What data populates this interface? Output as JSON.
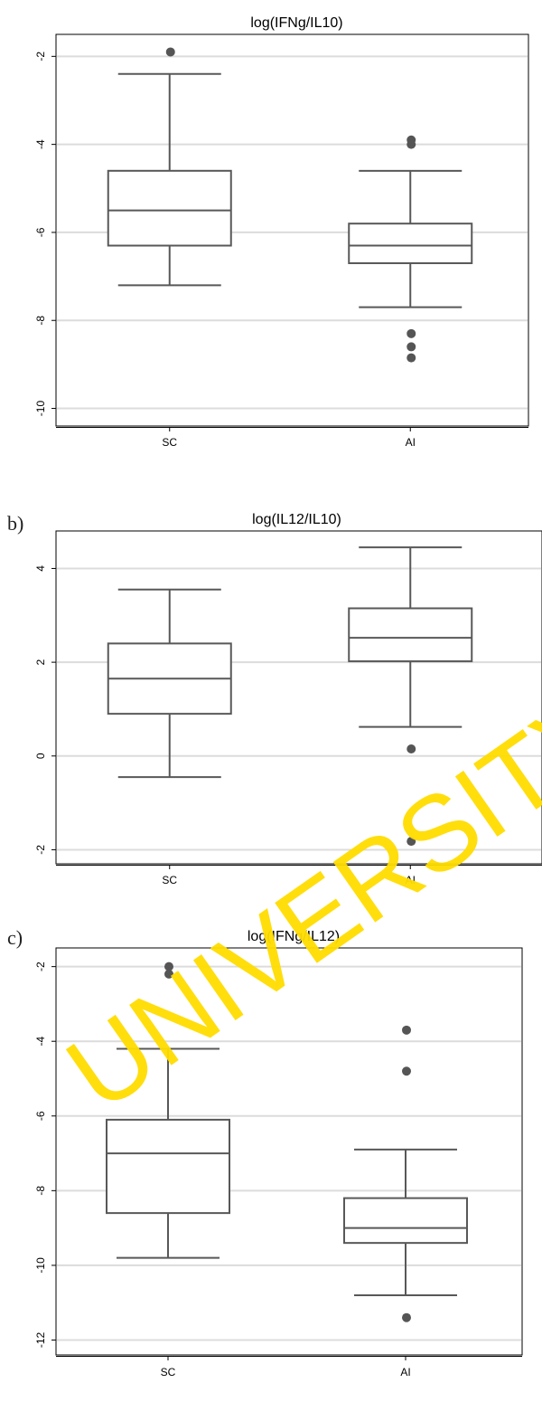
{
  "watermark": "UNIVERSITY OF",
  "panel_labels": [
    "b)",
    "c)"
  ],
  "chart_data": [
    {
      "type": "box",
      "title": "log(IFNg/IL10)",
      "categories": [
        "SC",
        "AI"
      ],
      "yticks": [
        -2,
        -4,
        -6,
        -8,
        -10
      ],
      "ylim": [
        -10.4,
        -1.5
      ],
      "grid": true,
      "boxes": [
        {
          "category": "SC",
          "whisker_low": -7.2,
          "q1": -6.3,
          "median": -5.5,
          "q3": -4.6,
          "whisker_high": -2.4,
          "outliers": [
            -1.9
          ]
        },
        {
          "category": "AI",
          "whisker_low": -7.7,
          "q1": -6.7,
          "median": -6.3,
          "q3": -5.8,
          "whisker_high": -4.6,
          "outliers": [
            -3.9,
            -4.0,
            -8.3,
            -8.6,
            -8.85
          ]
        }
      ]
    },
    {
      "type": "box",
      "title": "log(IL12/IL10)",
      "categories": [
        "SC",
        "AI"
      ],
      "yticks": [
        4,
        2,
        0,
        -2
      ],
      "ylim": [
        -2.3,
        4.8
      ],
      "grid": true,
      "boxes": [
        {
          "category": "SC",
          "whisker_low": -0.45,
          "q1": 0.9,
          "median": 1.65,
          "q3": 2.4,
          "whisker_high": 3.55,
          "outliers": []
        },
        {
          "category": "AI",
          "whisker_low": 0.62,
          "q1": 2.02,
          "median": 2.52,
          "q3": 3.15,
          "whisker_high": 4.45,
          "outliers": [
            0.15,
            -1.82
          ]
        }
      ]
    },
    {
      "type": "box",
      "title": "log(IFNg/IL12)",
      "categories": [
        "SC",
        "AI"
      ],
      "yticks": [
        -2,
        -4,
        -6,
        -8,
        -10,
        -12
      ],
      "ylim": [
        -12.4,
        -1.5
      ],
      "grid": true,
      "boxes": [
        {
          "category": "SC",
          "whisker_low": -9.8,
          "q1": -8.6,
          "median": -7.0,
          "q3": -6.1,
          "whisker_high": -4.2,
          "outliers": [
            -2.0,
            -2.2
          ]
        },
        {
          "category": "AI",
          "whisker_low": -10.8,
          "q1": -9.4,
          "median": -9.0,
          "q3": -8.2,
          "whisker_high": -6.9,
          "outliers": [
            -3.7,
            -4.8,
            -11.4
          ]
        }
      ]
    }
  ]
}
